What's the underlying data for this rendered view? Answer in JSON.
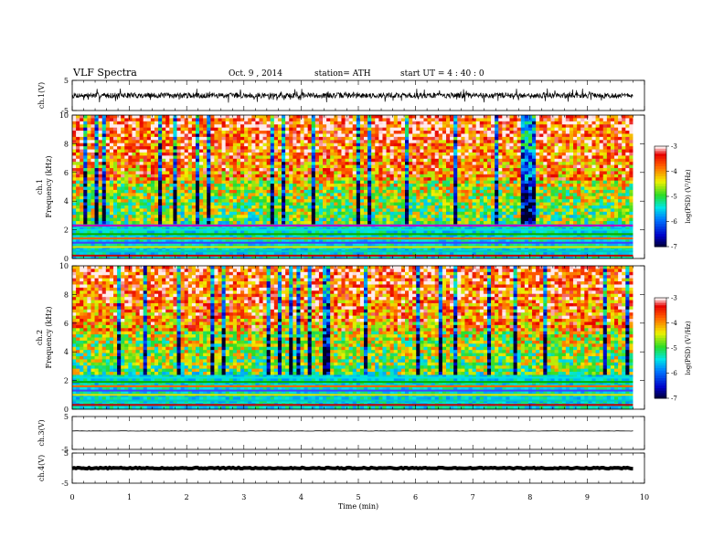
{
  "header": {
    "title": "VLF  Spectra",
    "date": "Oct. 9  , 2014",
    "station": "station= ATH",
    "start": "start  UT  =   4  : 40 :  0"
  },
  "chart_data": [
    {
      "type": "line",
      "name": "ch1-waveform",
      "ylabel": "ch.1(V)",
      "ylim": [
        -5,
        5
      ],
      "yticks": [
        -5,
        5
      ],
      "xlim": [
        0,
        10
      ],
      "amplitude_range": [
        -1.5,
        1.5
      ],
      "baseline": 0,
      "color": "#000000"
    },
    {
      "type": "heatmap",
      "name": "ch1-spectrogram",
      "ylabel": "Frequency  (kHz)",
      "channel_label": "ch.1",
      "ylim": [
        0,
        10
      ],
      "yticks": [
        0,
        2,
        4,
        6,
        8,
        10
      ],
      "xlim": [
        0,
        9.8
      ],
      "colorbar": {
        "label": "log(PSD) (V²/Hz)",
        "range": [
          -7,
          -3
        ],
        "ticks": [
          -3,
          -4,
          -5,
          -6,
          -7
        ]
      },
      "bands_kHz": [
        0.2,
        0.5,
        0.8,
        1.1,
        1.4,
        1.7,
        2.0,
        2.3
      ],
      "seed": 11
    },
    {
      "type": "heatmap",
      "name": "ch2-spectrogram",
      "ylabel": "Frequency  (kHz)",
      "channel_label": "ch.2",
      "ylim": [
        0,
        10
      ],
      "yticks": [
        0,
        2,
        4,
        6,
        8,
        10
      ],
      "xlim": [
        0,
        9.8
      ],
      "colorbar": {
        "label": "log(PSD) (V²/Hz)",
        "range": [
          -7,
          -3
        ],
        "ticks": [
          -3,
          -4,
          -5,
          -6,
          -7
        ]
      },
      "bands_kHz": [
        0.3,
        0.6,
        1.0,
        1.3,
        1.6,
        1.9,
        2.2
      ],
      "seed": 23
    },
    {
      "type": "line",
      "name": "ch3-waveform",
      "ylabel": "ch.3(V)",
      "ylim": [
        -5,
        5
      ],
      "yticks": [
        -5,
        5
      ],
      "xlim": [
        0,
        10
      ],
      "baseline": 0.6,
      "amplitude_range": [
        -0.05,
        0.05
      ],
      "color": "#000000"
    },
    {
      "type": "line",
      "name": "ch4-waveform",
      "ylabel": "ch.4(V)",
      "ylim": [
        -5,
        5
      ],
      "yticks": [
        -5,
        5
      ],
      "xlim": [
        0,
        10
      ],
      "baseline": 0,
      "amplitude_range": [
        -0.2,
        0.2
      ],
      "color": "#000000"
    }
  ],
  "xaxis": {
    "label": "Time  (min)",
    "ticks": [
      0,
      1,
      2,
      3,
      4,
      5,
      6,
      7,
      8,
      9,
      10
    ]
  }
}
